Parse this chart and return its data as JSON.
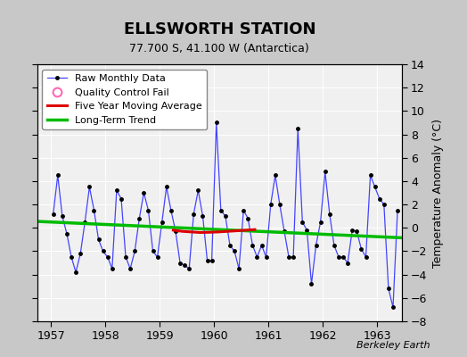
{
  "title": "ELLSWORTH STATION",
  "subtitle": "77.700 S, 41.100 W (Antarctica)",
  "ylabel_right": "Temperature Anomaly (°C)",
  "watermark": "Berkeley Earth",
  "background_color": "#c8c8c8",
  "plot_bg_color": "#f0f0f0",
  "ylim": [
    -8,
    14
  ],
  "xlim": [
    1956.75,
    1963.45
  ],
  "yticks": [
    -8,
    -6,
    -4,
    -2,
    0,
    2,
    4,
    6,
    8,
    10,
    12,
    14
  ],
  "xticks": [
    1957,
    1958,
    1959,
    1960,
    1961,
    1962,
    1963
  ],
  "raw_x": [
    1957.042,
    1957.125,
    1957.208,
    1957.292,
    1957.375,
    1957.458,
    1957.542,
    1957.625,
    1957.708,
    1957.792,
    1957.875,
    1957.958,
    1958.042,
    1958.125,
    1958.208,
    1958.292,
    1958.375,
    1958.458,
    1958.542,
    1958.625,
    1958.708,
    1958.792,
    1958.875,
    1958.958,
    1959.042,
    1959.125,
    1959.208,
    1959.292,
    1959.375,
    1959.458,
    1959.542,
    1959.625,
    1959.708,
    1959.792,
    1959.875,
    1959.958,
    1960.042,
    1960.125,
    1960.208,
    1960.292,
    1960.375,
    1960.458,
    1960.542,
    1960.625,
    1960.708,
    1960.792,
    1960.875,
    1960.958,
    1961.042,
    1961.125,
    1961.208,
    1961.292,
    1961.375,
    1961.458,
    1961.542,
    1961.625,
    1961.708,
    1961.792,
    1961.875,
    1961.958,
    1962.042,
    1962.125,
    1962.208,
    1962.292,
    1962.375,
    1962.458,
    1962.542,
    1962.625,
    1962.708,
    1962.792,
    1962.875,
    1962.958,
    1963.042,
    1963.125,
    1963.208,
    1963.292,
    1963.375
  ],
  "raw_y": [
    1.2,
    4.5,
    1.0,
    -0.5,
    -2.5,
    -3.8,
    -2.2,
    0.5,
    3.5,
    1.5,
    -1.0,
    -2.0,
    -2.5,
    -3.5,
    3.2,
    2.5,
    -2.5,
    -3.5,
    -2.0,
    0.8,
    3.0,
    1.5,
    -2.0,
    -2.5,
    0.5,
    3.5,
    1.5,
    -0.3,
    -3.0,
    -3.2,
    -3.5,
    1.2,
    3.2,
    1.0,
    -2.8,
    -2.8,
    9.0,
    1.5,
    1.0,
    -1.5,
    -2.0,
    -3.5,
    1.5,
    0.8,
    -1.5,
    -2.5,
    -1.5,
    -2.5,
    2.0,
    4.5,
    2.0,
    -0.3,
    -2.5,
    -2.5,
    8.5,
    0.5,
    -0.2,
    -4.8,
    -1.5,
    0.5,
    4.8,
    1.2,
    -1.5,
    -2.5,
    -2.5,
    -3.0,
    -0.2,
    -0.3,
    -1.8,
    -2.5,
    4.5,
    3.5,
    2.5,
    2.0,
    -5.2,
    -6.8,
    1.5
  ],
  "ma5_x": [
    1959.25,
    1959.42,
    1959.58,
    1959.75,
    1959.92,
    1960.08,
    1960.25,
    1960.42,
    1960.58,
    1960.75
  ],
  "ma5_y": [
    -0.2,
    -0.3,
    -0.35,
    -0.4,
    -0.38,
    -0.35,
    -0.3,
    -0.25,
    -0.2,
    -0.15
  ],
  "trend_x": [
    1956.75,
    1963.45
  ],
  "trend_y": [
    0.55,
    -0.85
  ],
  "line_color": "#4444ff",
  "marker_color": "#000000",
  "ma5_color": "#dd0000",
  "trend_color": "#00bb00",
  "legend_marker_color": "#ff69b4"
}
